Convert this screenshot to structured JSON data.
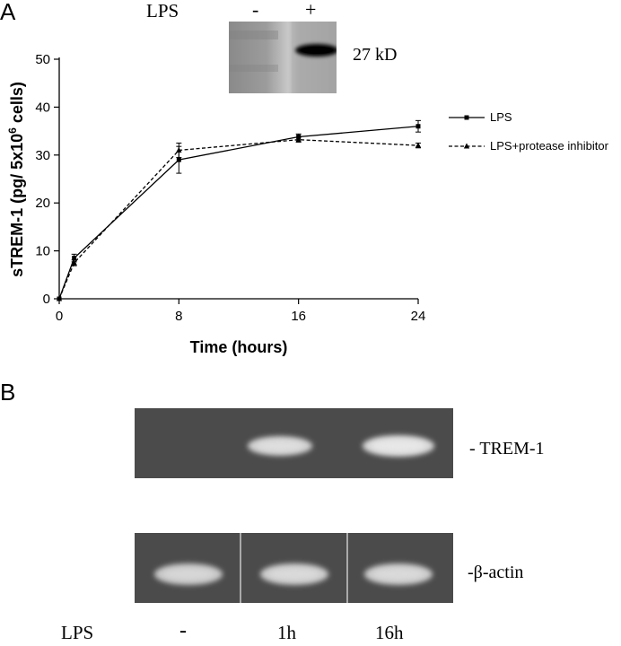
{
  "panel_a": {
    "letter": "A",
    "blot": {
      "lps_label": "LPS",
      "lane_minus": "-",
      "lane_plus": "+",
      "size_label": "27 kD"
    }
  },
  "panel_b": {
    "letter": "B",
    "trem_label": "TREM-1",
    "actin_label": "β-actin",
    "lps_label": "LPS",
    "lanes": [
      "-",
      "1h",
      "16h"
    ]
  },
  "chart_data": {
    "type": "line",
    "title": "",
    "xlabel": "Time (hours)",
    "ylabel": "sTREM-1 (pg/ 5x10",
    "ylabel_sup": "6",
    "ylabel_end": " cells)",
    "xlim": [
      0,
      24
    ],
    "ylim": [
      0,
      50
    ],
    "xticks": [
      0,
      8,
      16,
      24
    ],
    "yticks": [
      0,
      10,
      20,
      30,
      40,
      50
    ],
    "legend_position": "right",
    "series": [
      {
        "name": "LPS",
        "style": "solid",
        "marker": "square",
        "x": [
          0,
          1,
          8,
          16,
          24
        ],
        "y": [
          0,
          8.5,
          29,
          33.8,
          36
        ],
        "err": [
          0,
          0.8,
          2.8,
          0.6,
          1.2
        ]
      },
      {
        "name": "LPS+protease inhibitor",
        "style": "dashed",
        "marker": "triangle",
        "x": [
          0,
          1,
          8,
          16,
          24
        ],
        "y": [
          0,
          7.5,
          31,
          33.2,
          32
        ],
        "err": [
          0,
          0.6,
          1.5,
          0.5,
          0.5
        ]
      }
    ]
  }
}
